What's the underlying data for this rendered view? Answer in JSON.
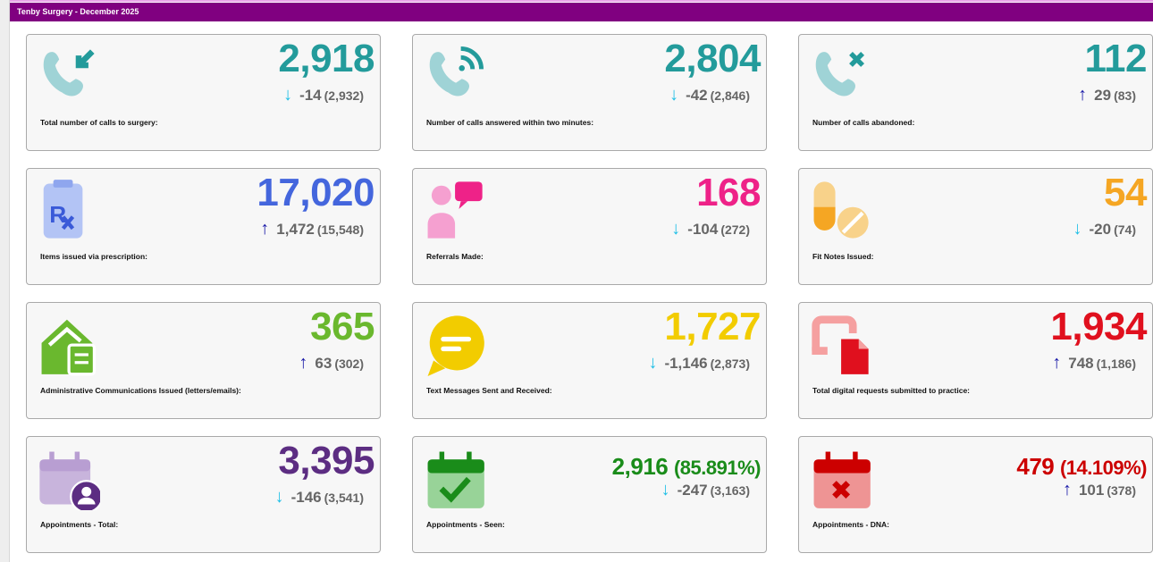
{
  "header": {
    "title": "Tenby Surgery - December 2025"
  },
  "colors": {
    "header": "#800080",
    "arrow_down": "#1fbfe6",
    "arrow_up": "#1a1aa8"
  },
  "cards": [
    {
      "icon": "phone-incoming-icon",
      "value": "2,918",
      "color": "#239b9b",
      "direction": "down",
      "change": "-14",
      "previous": "(2,932)",
      "label": "Total number of calls to surgery:"
    },
    {
      "icon": "phone-answered-icon",
      "value": "2,804",
      "color": "#239b9b",
      "direction": "down",
      "change": "-42",
      "previous": "(2,846)",
      "label": "Number of calls answered within two minutes:"
    },
    {
      "icon": "phone-abandoned-icon",
      "value": "112",
      "color": "#239b9b",
      "direction": "up",
      "change": "29",
      "previous": "(83)",
      "label": "Number of calls abandoned:"
    },
    {
      "icon": "prescription-icon",
      "value": "17,020",
      "color": "#4466dd",
      "direction": "up",
      "change": "1,472",
      "previous": "(15,548)",
      "label": "Items issued via prescription:"
    },
    {
      "icon": "referral-icon",
      "value": "168",
      "color": "#ee2288",
      "direction": "down",
      "change": "-104",
      "previous": "(272)",
      "label": "Referrals Made:"
    },
    {
      "icon": "pills-icon",
      "value": "54",
      "color": "#f5a623",
      "direction": "down",
      "change": "-20",
      "previous": "(74)",
      "label": "Fit Notes Issued:"
    },
    {
      "icon": "mail-house-icon",
      "value": "365",
      "color": "#6ab82e",
      "direction": "up",
      "change": "63",
      "previous": "(302)",
      "label": "Administrative Communications Issued (letters/emails):"
    },
    {
      "icon": "chat-bubble-icon",
      "value": "1,727",
      "color": "#f2cc00",
      "direction": "down",
      "change": "-1,146",
      "previous": "(2,873)",
      "label": "Text Messages Sent and Received:"
    },
    {
      "icon": "digital-request-icon",
      "value": "1,934",
      "color": "#e0101e",
      "direction": "up",
      "change": "748",
      "previous": "(1,186)",
      "label": "Total digital requests submitted to practice:"
    },
    {
      "icon": "calendar-user-icon",
      "value": "3,395",
      "color": "#5c2d82",
      "direction": "down",
      "change": "-146",
      "previous": "(3,541)",
      "label": "Appointments - Total:"
    },
    {
      "icon": "calendar-check-icon",
      "value": "2,916",
      "pct": "(85.891%)",
      "color": "#1a8c1a",
      "direction": "down",
      "change": "-247",
      "previous": "(3,163)",
      "label": "Appointments - Seen:"
    },
    {
      "icon": "calendar-x-icon",
      "value": "479",
      "pct": "(14.109%)",
      "color": "#cc0000",
      "direction": "up",
      "change": "101",
      "previous": "(378)",
      "label": "Appointments - DNA:"
    }
  ]
}
